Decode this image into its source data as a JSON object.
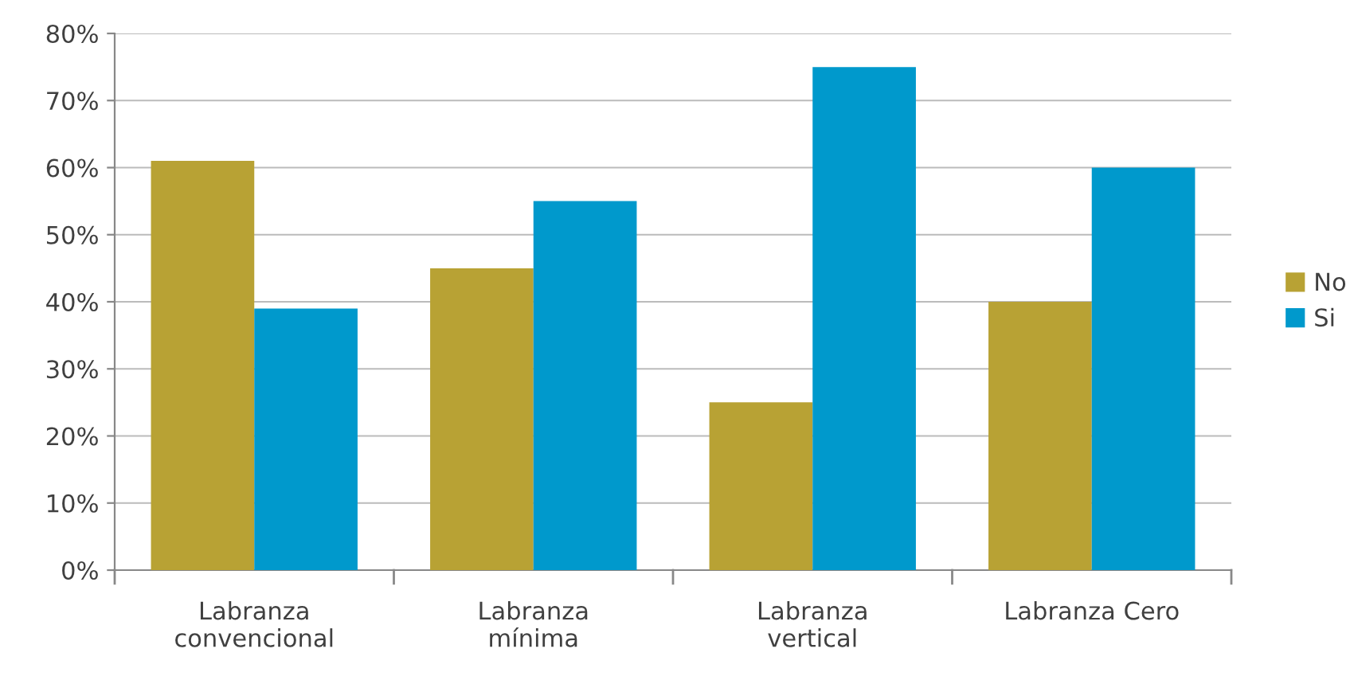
{
  "chart_data": {
    "type": "bar",
    "categories": [
      "Labranza\nconvencional",
      "Labranza\nmínima",
      "Labranza\nvertical",
      "Labranza Cero"
    ],
    "series": [
      {
        "name": "No",
        "color": "#b8a234",
        "values": [
          61,
          45,
          25,
          40
        ]
      },
      {
        "name": "Si",
        "color": "#0099cc",
        "values": [
          39,
          55,
          75,
          60
        ]
      }
    ],
    "ylim": [
      0,
      80
    ],
    "yticks": [
      {
        "value": 0,
        "label": "0%"
      },
      {
        "value": 10,
        "label": "10%"
      },
      {
        "value": 20,
        "label": "20%"
      },
      {
        "value": 30,
        "label": "30%"
      },
      {
        "value": 40,
        "label": "40%"
      },
      {
        "value": 50,
        "label": "50%"
      },
      {
        "value": 60,
        "label": "60%"
      },
      {
        "value": 70,
        "label": "70%"
      },
      {
        "value": 80,
        "label": "80%"
      }
    ],
    "grid": "y",
    "legend": "right"
  }
}
